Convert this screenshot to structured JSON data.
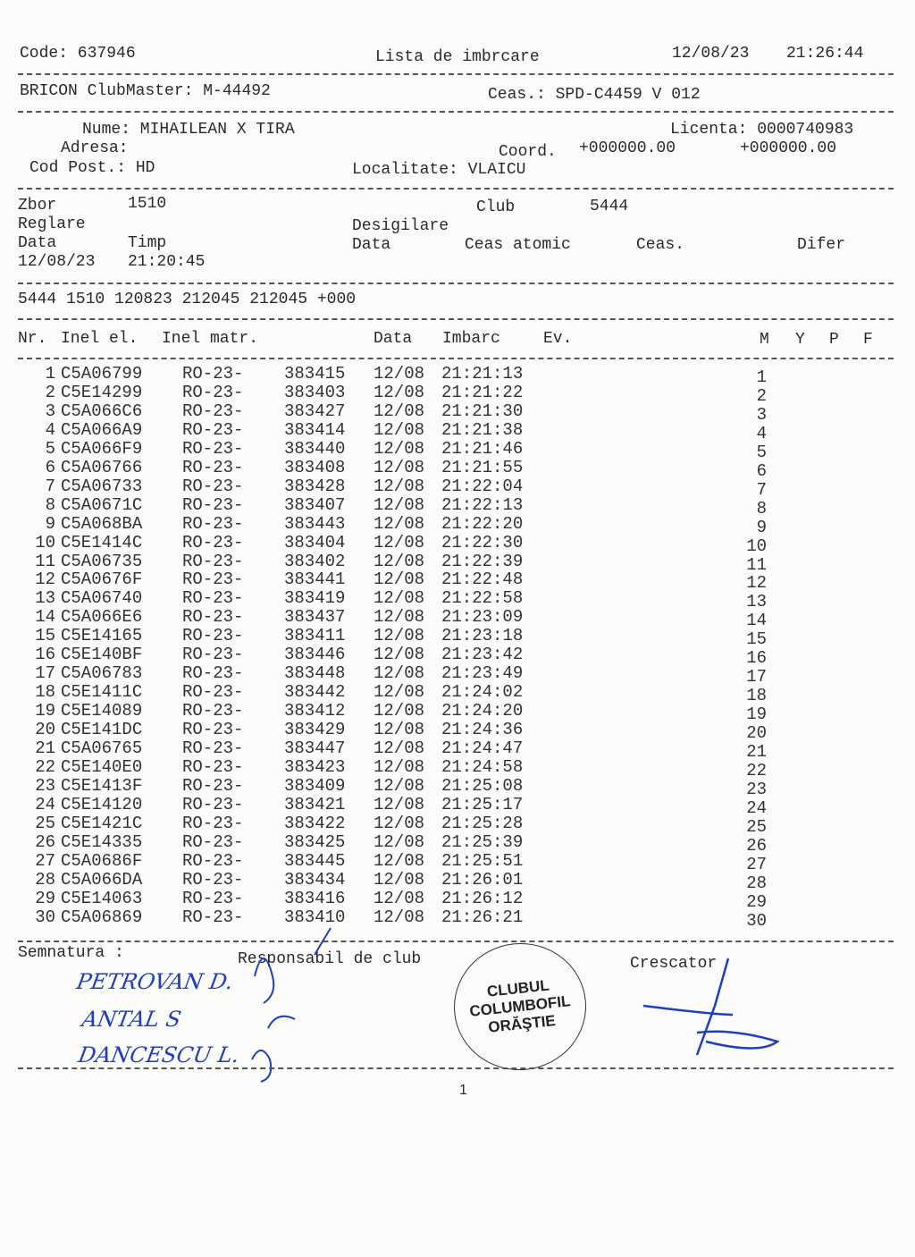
{
  "header": {
    "code": "Code: 637946",
    "title": "Lista de imbrcare",
    "date": "12/08/23",
    "time": "21:26:44",
    "clubmaster": "BRICON ClubMaster: M-44492",
    "clock": "Ceas.: SPD-C4459 V 012"
  },
  "owner": {
    "name": "Nume: MIHAILEAN X TIRA",
    "license": "Licenta: 0000740983",
    "address": "Adresa:",
    "coord_label": "Coord.",
    "coord1": "+000000.00",
    "coord2": "+000000.00",
    "postal": "Cod Post.: HD",
    "locality": "Localitate: VLAICU"
  },
  "flight": {
    "zbor_label": "Zbor",
    "zbor": "1510",
    "club_label": "Club",
    "club": "5444",
    "reglare": "Reglare",
    "desigilare": "Desigilare",
    "data_label": "Data",
    "timp_label": "Timp",
    "data2_label": "Data",
    "ceas_atomic": "Ceas atomic",
    "ceas": "Ceas.",
    "difer": "Difer",
    "reg_date": "12/08/23",
    "reg_time": "21:20:45",
    "summary": "5444 1510 120823 212045 212045 +000"
  },
  "table": {
    "headers": {
      "nr": "Nr.",
      "inel_el": "Inel el.",
      "inel_matr": "Inel matr.",
      "data": "Data",
      "imbarc": "Imbarc",
      "ev": "Ev.",
      "m": "M",
      "y": "Y",
      "p": "P",
      "f": "F"
    },
    "rows": [
      {
        "nr": "1",
        "el": "C5A06799",
        "ro": "RO-23-",
        "matr": "383415",
        "date": "12/08",
        "time": "21:21:13",
        "m": "1"
      },
      {
        "nr": "2",
        "el": "C5E14299",
        "ro": "RO-23-",
        "matr": "383403",
        "date": "12/08",
        "time": "21:21:22",
        "m": "2"
      },
      {
        "nr": "3",
        "el": "C5A066C6",
        "ro": "RO-23-",
        "matr": "383427",
        "date": "12/08",
        "time": "21:21:30",
        "m": "3"
      },
      {
        "nr": "4",
        "el": "C5A066A9",
        "ro": "RO-23-",
        "matr": "383414",
        "date": "12/08",
        "time": "21:21:38",
        "m": "4"
      },
      {
        "nr": "5",
        "el": "C5A066F9",
        "ro": "RO-23-",
        "matr": "383440",
        "date": "12/08",
        "time": "21:21:46",
        "m": "5"
      },
      {
        "nr": "6",
        "el": "C5A06766",
        "ro": "RO-23-",
        "matr": "383408",
        "date": "12/08",
        "time": "21:21:55",
        "m": "6"
      },
      {
        "nr": "7",
        "el": "C5A06733",
        "ro": "RO-23-",
        "matr": "383428",
        "date": "12/08",
        "time": "21:22:04",
        "m": "7"
      },
      {
        "nr": "8",
        "el": "C5A0671C",
        "ro": "RO-23-",
        "matr": "383407",
        "date": "12/08",
        "time": "21:22:13",
        "m": "8"
      },
      {
        "nr": "9",
        "el": "C5A068BA",
        "ro": "RO-23-",
        "matr": "383443",
        "date": "12/08",
        "time": "21:22:20",
        "m": "9"
      },
      {
        "nr": "10",
        "el": "C5E1414C",
        "ro": "RO-23-",
        "matr": "383404",
        "date": "12/08",
        "time": "21:22:30",
        "m": "10"
      },
      {
        "nr": "11",
        "el": "C5A06735",
        "ro": "RO-23-",
        "matr": "383402",
        "date": "12/08",
        "time": "21:22:39",
        "m": "11"
      },
      {
        "nr": "12",
        "el": "C5A0676F",
        "ro": "RO-23-",
        "matr": "383441",
        "date": "12/08",
        "time": "21:22:48",
        "m": "12"
      },
      {
        "nr": "13",
        "el": "C5A06740",
        "ro": "RO-23-",
        "matr": "383419",
        "date": "12/08",
        "time": "21:22:58",
        "m": "13"
      },
      {
        "nr": "14",
        "el": "C5A066E6",
        "ro": "RO-23-",
        "matr": "383437",
        "date": "12/08",
        "time": "21:23:09",
        "m": "14"
      },
      {
        "nr": "15",
        "el": "C5E14165",
        "ro": "RO-23-",
        "matr": "383411",
        "date": "12/08",
        "time": "21:23:18",
        "m": "15"
      },
      {
        "nr": "16",
        "el": "C5E140BF",
        "ro": "RO-23-",
        "matr": "383446",
        "date": "12/08",
        "time": "21:23:42",
        "m": "16"
      },
      {
        "nr": "17",
        "el": "C5A06783",
        "ro": "RO-23-",
        "matr": "383448",
        "date": "12/08",
        "time": "21:23:49",
        "m": "17"
      },
      {
        "nr": "18",
        "el": "C5E1411C",
        "ro": "RO-23-",
        "matr": "383442",
        "date": "12/08",
        "time": "21:24:02",
        "m": "18"
      },
      {
        "nr": "19",
        "el": "C5E14089",
        "ro": "RO-23-",
        "matr": "383412",
        "date": "12/08",
        "time": "21:24:20",
        "m": "19"
      },
      {
        "nr": "20",
        "el": "C5E141DC",
        "ro": "RO-23-",
        "matr": "383429",
        "date": "12/08",
        "time": "21:24:36",
        "m": "20"
      },
      {
        "nr": "21",
        "el": "C5A06765",
        "ro": "RO-23-",
        "matr": "383447",
        "date": "12/08",
        "time": "21:24:47",
        "m": "21"
      },
      {
        "nr": "22",
        "el": "C5E140E0",
        "ro": "RO-23-",
        "matr": "383423",
        "date": "12/08",
        "time": "21:24:58",
        "m": "22"
      },
      {
        "nr": "23",
        "el": "C5E1413F",
        "ro": "RO-23-",
        "matr": "383409",
        "date": "12/08",
        "time": "21:25:08",
        "m": "23"
      },
      {
        "nr": "24",
        "el": "C5E14120",
        "ro": "RO-23-",
        "matr": "383421",
        "date": "12/08",
        "time": "21:25:17",
        "m": "24"
      },
      {
        "nr": "25",
        "el": "C5E1421C",
        "ro": "RO-23-",
        "matr": "383422",
        "date": "12/08",
        "time": "21:25:28",
        "m": "25"
      },
      {
        "nr": "26",
        "el": "C5E14335",
        "ro": "RO-23-",
        "matr": "383425",
        "date": "12/08",
        "time": "21:25:39",
        "m": "26"
      },
      {
        "nr": "27",
        "el": "C5A0686F",
        "ro": "RO-23-",
        "matr": "383445",
        "date": "12/08",
        "time": "21:25:51",
        "m": "27"
      },
      {
        "nr": "28",
        "el": "C5A066DA",
        "ro": "RO-23-",
        "matr": "383434",
        "date": "12/08",
        "time": "21:26:01",
        "m": "28"
      },
      {
        "nr": "29",
        "el": "C5E14063",
        "ro": "RO-23-",
        "matr": "383416",
        "date": "12/08",
        "time": "21:26:12",
        "m": "29"
      },
      {
        "nr": "30",
        "el": "C5A06869",
        "ro": "RO-23-",
        "matr": "383410",
        "date": "12/08",
        "time": "21:26:21",
        "m": "30"
      }
    ]
  },
  "footer": {
    "semnatura": "Semnatura :",
    "responsabil": "Responsabil de club",
    "crescator": "Crescator",
    "handwritten": [
      "PETROVAN D.",
      "ANTAL S",
      "DANCESCU L."
    ],
    "stamp": [
      "CLUBUL",
      "COLUMBOFIL",
      "ORĂŞTIE"
    ],
    "page": "1"
  },
  "colors": {
    "ink": "#2a2a2a",
    "signature": "#1f3fbf",
    "paper": "#fbfbfa"
  }
}
